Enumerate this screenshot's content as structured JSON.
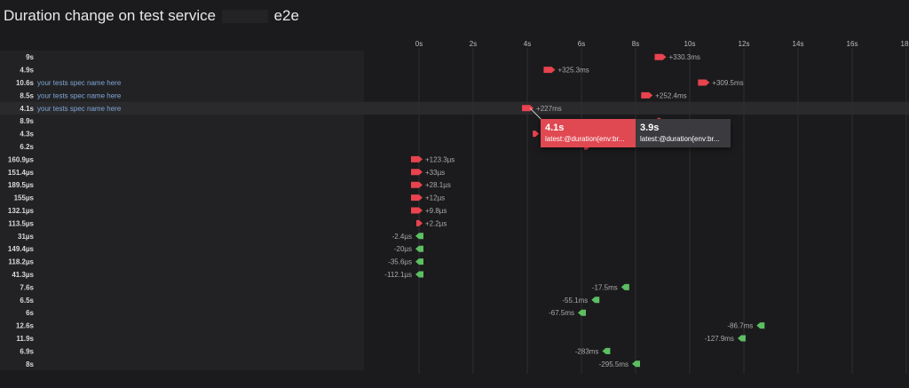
{
  "title": {
    "prefix": "Duration change on test service",
    "suffix": "e2e"
  },
  "colors": {
    "increase": "#e8434e",
    "decrease": "#5cbf62",
    "label": "#a9a9a9",
    "row_label": "#d9d9d9",
    "spec": "#7fa7d6"
  },
  "chart_data": {
    "type": "bar",
    "x_axis": {
      "ticks": [
        "0s",
        "2s",
        "4s",
        "6s",
        "8s",
        "10s",
        "12s",
        "14s",
        "16s",
        "18s"
      ],
      "unit": "s",
      "range": [
        0,
        18
      ]
    },
    "rows": [
      {
        "label": "9s",
        "spec": "",
        "value": 9,
        "change": "+330.3ms",
        "dir": "up"
      },
      {
        "label": "4.9s",
        "spec": "",
        "value": 4.9,
        "change": "+325.3ms",
        "dir": "up"
      },
      {
        "label": "10.6s",
        "spec": "your tests spec name here",
        "value": 10.6,
        "change": "+309.5ms",
        "dir": "up"
      },
      {
        "label": "8.5s",
        "spec": "your tests spec name here",
        "value": 8.5,
        "change": "+252.4ms",
        "dir": "up"
      },
      {
        "label": "4.1s",
        "spec": "your tests spec name here",
        "value": 4.1,
        "change": "+227ms",
        "dir": "up"
      },
      {
        "label": "8.9s",
        "spec": "",
        "value": 8.9,
        "change": "",
        "dir": "up"
      },
      {
        "label": "4.3s",
        "spec": "",
        "value": 4.3,
        "change": "",
        "dir": "up"
      },
      {
        "label": "6.2s",
        "spec": "",
        "value": 6.2,
        "change": "",
        "dir": "up"
      },
      {
        "label": "160.9µs",
        "spec": "",
        "value": 0.0001609,
        "change": "+123.3µs",
        "dir": "up"
      },
      {
        "label": "151.4µs",
        "spec": "",
        "value": 0.0001514,
        "change": "+33µs",
        "dir": "up"
      },
      {
        "label": "189.5µs",
        "spec": "",
        "value": 0.0001895,
        "change": "+28.1µs",
        "dir": "up"
      },
      {
        "label": "155µs",
        "spec": "",
        "value": 0.000155,
        "change": "+12µs",
        "dir": "up"
      },
      {
        "label": "132.1µs",
        "spec": "",
        "value": 0.0001321,
        "change": "+9.8µs",
        "dir": "up"
      },
      {
        "label": "113.5µs",
        "spec": "",
        "value": 0.0001135,
        "change": "+2.2µs",
        "dir": "up"
      },
      {
        "label": "31µs",
        "spec": "",
        "value": 3.1e-05,
        "change": "-2.4µs",
        "dir": "down"
      },
      {
        "label": "149.4µs",
        "spec": "",
        "value": 0.0001494,
        "change": "-20µs",
        "dir": "down"
      },
      {
        "label": "118.2µs",
        "spec": "",
        "value": 0.0001182,
        "change": "-35.6µs",
        "dir": "down"
      },
      {
        "label": "41.3µs",
        "spec": "",
        "value": 4.13e-05,
        "change": "-112.1µs",
        "dir": "down"
      },
      {
        "label": "7.6s",
        "spec": "",
        "value": 7.6,
        "change": "-17.5ms",
        "dir": "down"
      },
      {
        "label": "6.5s",
        "spec": "",
        "value": 6.5,
        "change": "-55.1ms",
        "dir": "down"
      },
      {
        "label": "6s",
        "spec": "",
        "value": 6,
        "change": "-67.5ms",
        "dir": "down"
      },
      {
        "label": "12.6s",
        "spec": "",
        "value": 12.6,
        "change": "-86.7ms",
        "dir": "down"
      },
      {
        "label": "11.9s",
        "spec": "",
        "value": 11.9,
        "change": "-127.9ms",
        "dir": "down"
      },
      {
        "label": "6.9s",
        "spec": "",
        "value": 6.9,
        "change": "-283ms",
        "dir": "down"
      },
      {
        "label": "8s",
        "spec": "",
        "value": 8,
        "change": "-295.5ms",
        "dir": "down"
      }
    ]
  },
  "tooltip": {
    "left": {
      "value": "4.1s",
      "query": "latest:@duration{env:br..."
    },
    "right": {
      "value": "3.9s",
      "query": "latest:@duration{env:br..."
    }
  }
}
